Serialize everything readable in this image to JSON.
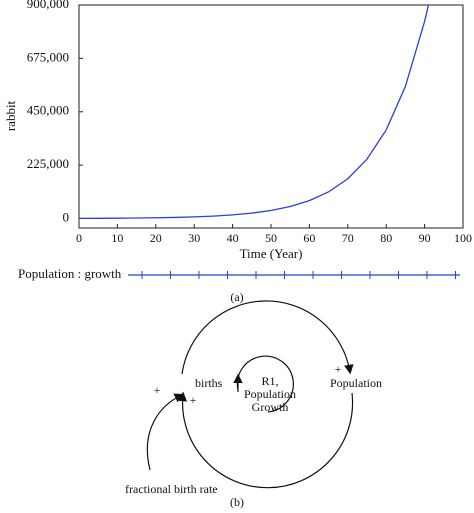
{
  "chart_data": {
    "type": "line",
    "x_label": "Time (Year)",
    "y_label": "rabbit",
    "x": [
      0,
      5,
      10,
      15,
      20,
      25,
      30,
      35,
      40,
      45,
      50,
      55,
      60,
      65,
      70,
      75,
      80,
      85,
      90,
      91
    ],
    "series": [
      {
        "name": "Population : growth",
        "color": "#2b3fd6",
        "values": [
          620,
          924,
          1381,
          2059,
          3073,
          4583,
          6838,
          10200,
          15220,
          22700,
          33870,
          50520,
          75370,
          112400,
          167700,
          250200,
          373300,
          556900,
          830800,
          900000
        ]
      }
    ],
    "xlim": [
      0,
      100
    ],
    "xticks": [
      0,
      10,
      20,
      30,
      40,
      50,
      60,
      70,
      80,
      90,
      100
    ],
    "ylim": [
      -40000,
      900000
    ],
    "yticks": [
      0,
      {
        "value": 225000,
        "label": "225,000"
      },
      {
        "value": 450000,
        "label": "450,000"
      },
      {
        "value": 675000,
        "label": "675,000"
      },
      {
        "value": 900000,
        "label": "900,000"
      }
    ],
    "grid": false,
    "caption": "(a)"
  },
  "diagram": {
    "nodes": [
      {
        "label": "births"
      },
      {
        "label": "Population"
      },
      {
        "label": "fractional birth rate"
      }
    ],
    "loop_label": [
      "R1,",
      "Population",
      "Growth"
    ],
    "polarities": [
      "+",
      "+",
      "+"
    ],
    "caption": "(b)"
  }
}
